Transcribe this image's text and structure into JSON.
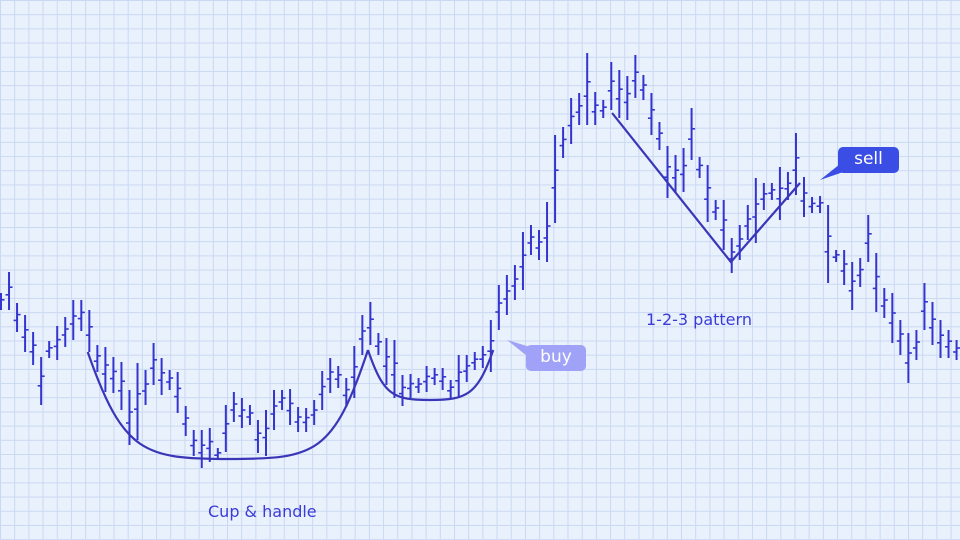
{
  "chart_data": {
    "type": "ohlc",
    "title": "",
    "xlabel": "",
    "ylabel": "",
    "axes_visible": false,
    "grid": true,
    "colors": {
      "bars": "#3434cf",
      "pattern_lines": "#3a36b8",
      "background": "#e9f1fd",
      "grid": "#cad8f1",
      "buy_bubble": "#9fa2f6",
      "sell_bubble": "#3a4ee6",
      "label_text": "#3b3bd6"
    },
    "bars_high_low": [
      [
        247,
        230
      ],
      [
        268,
        230
      ],
      [
        237,
        208
      ],
      [
        225,
        188
      ],
      [
        208,
        175
      ],
      [
        183,
        135
      ],
      [
        199,
        182
      ],
      [
        214,
        180
      ],
      [
        223,
        193
      ],
      [
        240,
        200
      ],
      [
        240,
        209
      ],
      [
        230,
        188
      ],
      [
        195,
        168
      ],
      [
        193,
        148
      ],
      [
        183,
        147
      ],
      [
        178,
        130
      ],
      [
        150,
        95
      ],
      [
        177,
        100
      ],
      [
        170,
        135
      ],
      [
        197,
        155
      ],
      [
        182,
        145
      ],
      [
        170,
        150
      ],
      [
        168,
        127
      ],
      [
        134,
        104
      ],
      [
        110,
        84
      ],
      [
        110,
        72
      ],
      [
        112,
        78
      ],
      [
        92,
        80
      ],
      [
        135,
        88
      ],
      [
        148,
        118
      ],
      [
        142,
        112
      ],
      [
        135,
        115
      ],
      [
        120,
        87
      ],
      [
        130,
        84
      ],
      [
        150,
        110
      ],
      [
        150,
        130
      ],
      [
        151,
        115
      ],
      [
        133,
        108
      ],
      [
        132,
        108
      ],
      [
        140,
        115
      ],
      [
        169,
        130
      ],
      [
        182,
        147
      ],
      [
        174,
        152
      ],
      [
        162,
        133
      ],
      [
        194,
        142
      ],
      [
        225,
        185
      ],
      [
        238,
        195
      ],
      [
        207,
        185
      ],
      [
        202,
        155
      ],
      [
        200,
        142
      ],
      [
        165,
        134
      ],
      [
        166,
        142
      ],
      [
        162,
        147
      ],
      [
        174,
        148
      ],
      [
        172,
        155
      ],
      [
        172,
        150
      ],
      [
        160,
        142
      ],
      [
        185,
        142
      ],
      [
        185,
        158
      ],
      [
        188,
        170
      ],
      [
        194,
        172
      ],
      [
        220,
        168
      ],
      [
        255,
        210
      ],
      [
        265,
        225
      ],
      [
        275,
        240
      ],
      [
        308,
        250
      ],
      [
        315,
        285
      ],
      [
        310,
        280
      ],
      [
        338,
        278
      ],
      [
        405,
        317
      ],
      [
        413,
        382
      ],
      [
        442,
        396
      ],
      [
        447,
        415
      ],
      [
        487,
        415
      ],
      [
        448,
        415
      ],
      [
        440,
        422
      ],
      [
        478,
        430
      ],
      [
        470,
        422
      ],
      [
        464,
        420
      ],
      [
        485,
        442
      ],
      [
        465,
        440
      ],
      [
        447,
        405
      ],
      [
        418,
        390
      ],
      [
        394,
        342
      ],
      [
        385,
        347
      ],
      [
        392,
        348
      ],
      [
        432,
        380
      ],
      [
        383,
        362
      ],
      [
        375,
        318
      ],
      [
        340,
        320
      ],
      [
        340,
        290
      ],
      [
        302,
        267
      ],
      [
        315,
        280
      ],
      [
        335,
        300
      ],
      [
        362,
        297
      ],
      [
        357,
        330
      ],
      [
        357,
        340
      ],
      [
        373,
        320
      ],
      [
        368,
        340
      ],
      [
        407,
        345
      ],
      [
        363,
        323
      ],
      [
        343,
        327
      ],
      [
        344,
        327
      ],
      [
        335,
        257
      ],
      [
        290,
        278
      ],
      [
        290,
        255
      ],
      [
        278,
        230
      ],
      [
        282,
        253
      ],
      [
        325,
        278
      ],
      [
        287,
        228
      ],
      [
        252,
        222
      ],
      [
        247,
        197
      ],
      [
        220,
        185
      ],
      [
        207,
        157
      ],
      [
        210,
        180
      ],
      [
        257,
        210
      ],
      [
        238,
        195
      ],
      [
        220,
        182
      ],
      [
        210,
        182
      ],
      [
        200,
        180
      ]
    ],
    "patterns": {
      "cup": {
        "start": [
          10.8,
          188
        ],
        "bottom": [
          28.5,
          81
        ],
        "end": [
          45.7,
          190
        ]
      },
      "handle": {
        "start": [
          45.7,
          190
        ],
        "bottom": [
          53.4,
          140
        ],
        "end": [
          61.3,
          190
        ]
      },
      "one_two_three": [
        [
          76.1,
          427
        ],
        [
          90.9,
          278
        ],
        [
          99.5,
          357
        ]
      ]
    },
    "annotations": {
      "cup_label": "Cup & handle",
      "pattern_label": "1-2-3 pattern",
      "buy_label": "buy",
      "sell_label": "sell"
    }
  }
}
